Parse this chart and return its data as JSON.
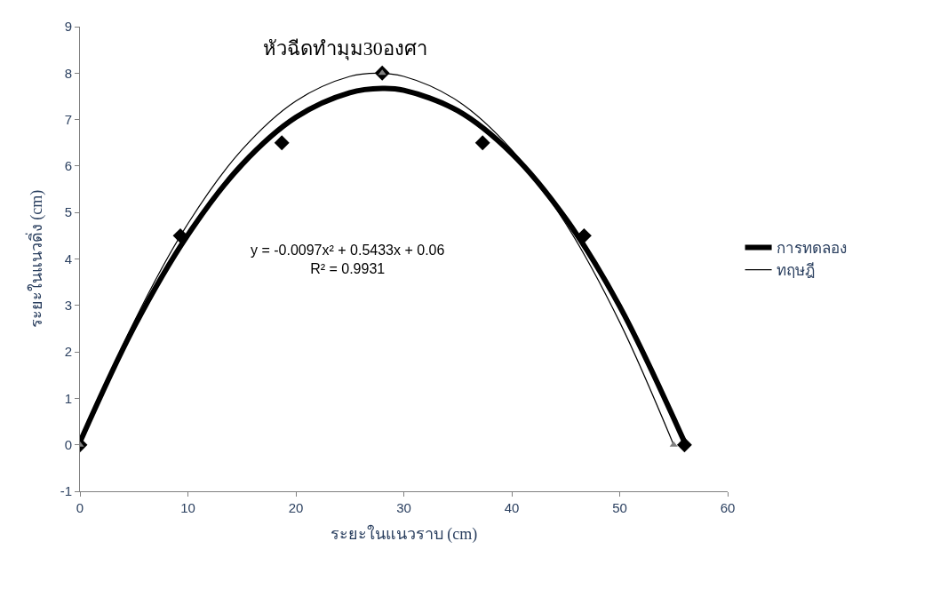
{
  "chart_data": {
    "type": "line",
    "title": "หัวฉีดทำมุม30องศา",
    "xlabel": "ระยะในแนวราบ (cm)",
    "ylabel": "ระยะในแนวดิ่ง (cm)",
    "xlim": [
      0,
      60
    ],
    "xticks": [
      0,
      10,
      20,
      30,
      40,
      50,
      60
    ],
    "ylim": [
      -1,
      9
    ],
    "yticks": [
      -1,
      0,
      1,
      2,
      3,
      4,
      5,
      6,
      7,
      8,
      9
    ],
    "legend": "right",
    "annotations": [
      "y = -0.0097x² + 0.5433x + 0.06\nR² = 0.9931"
    ],
    "series": [
      {
        "name": "การทดลอง",
        "color": "#000000",
        "marker": "none",
        "line_style": "solid",
        "x": [
          0,
          5,
          10,
          15,
          20,
          25,
          28,
          30,
          35,
          40,
          45,
          50,
          56
        ],
        "values": [
          0.06,
          2.53,
          4.52,
          6.03,
          7.05,
          7.58,
          7.67,
          7.63,
          7.19,
          6.27,
          4.87,
          2.98,
          0.06
        ]
      },
      {
        "name": "ทฤษฎี",
        "color": "#000000",
        "marker": "none",
        "line_style": "solid",
        "x": [
          0,
          5,
          10,
          15,
          20,
          25,
          27.5,
          30,
          35,
          40,
          45,
          50,
          55
        ],
        "values": [
          0,
          2.64,
          4.76,
          6.35,
          7.4,
          7.93,
          8,
          7.93,
          7.4,
          6.35,
          4.76,
          2.64,
          0
        ]
      },
      {
        "type": "scatter",
        "color": "#000000",
        "marker": "diamond",
        "x": [
          0,
          9.3,
          18.7,
          28,
          37.3,
          46.7,
          56
        ],
        "values": [
          0,
          4.5,
          6.5,
          8,
          6.5,
          4.5,
          0
        ]
      },
      {
        "type": "scatter",
        "color": "#808080",
        "marker": "triangle",
        "x": [
          0,
          28,
          55
        ],
        "values": [
          0,
          8,
          0
        ]
      }
    ]
  }
}
